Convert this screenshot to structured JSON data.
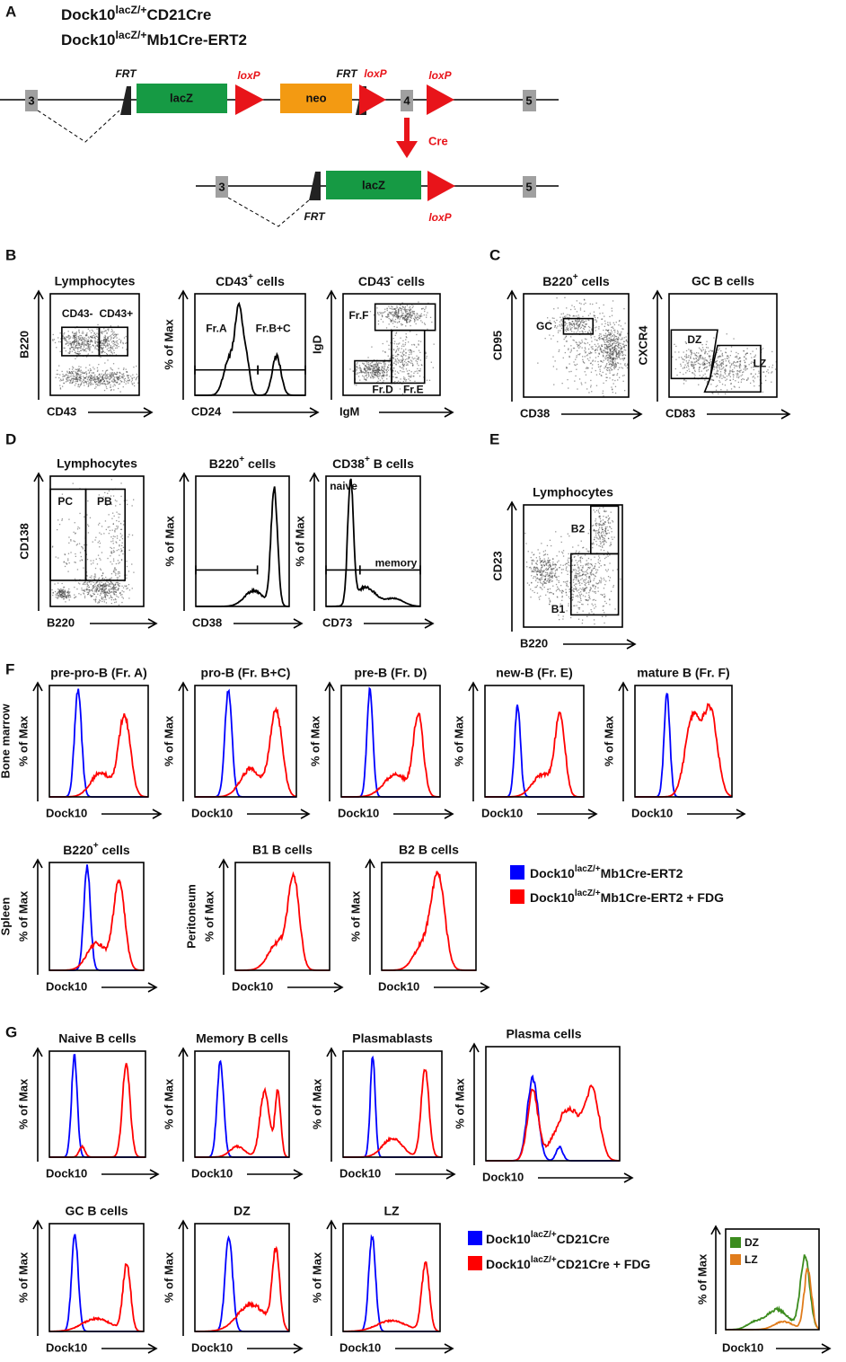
{
  "figure": {
    "A": {
      "label": "A",
      "genotypes": [
        {
          "base": "Dock10",
          "sup": "lacZ/+",
          "suffix": "CD21Cre"
        },
        {
          "base": "Dock10",
          "sup": "lacZ/+",
          "suffix": "Mb1Cre-ERT2"
        }
      ],
      "floxed_allele": {
        "exon_3": "3",
        "frt_1": "FRT",
        "lacz": "lacZ",
        "loxp_1": "loxP",
        "neo": "neo",
        "frt_2": "FRT",
        "loxp_2": "loxP",
        "exon_4": "4",
        "loxp_3": "loxP",
        "exon_5": "5"
      },
      "recombination": "Cre",
      "deleted_allele": {
        "exon_3": "3",
        "lacz": "lacZ",
        "frt": "FRT",
        "loxp": "loxP",
        "exon_5": "5"
      }
    },
    "B": {
      "label": "B",
      "plots": [
        {
          "title": "Lymphocytes",
          "x_label": "CD43",
          "y_label": "B220",
          "gates": [
            "CD43-",
            "CD43+"
          ]
        },
        {
          "title": {
            "base": "CD43",
            "sup": "+",
            "suffix": " cells"
          },
          "x_label": "CD24",
          "y_label": "% of Max",
          "gates": [
            "Fr.A",
            "Fr.B+C"
          ]
        },
        {
          "title": {
            "base": "CD43",
            "sup": "-",
            "suffix": " cells"
          },
          "x_label": "IgM",
          "y_label": "IgD",
          "gates": [
            "Fr.F",
            "Fr.D",
            "Fr.E"
          ]
        }
      ]
    },
    "C": {
      "label": "C",
      "plots": [
        {
          "title": {
            "base": "B220",
            "sup": "+",
            "suffix": " cells"
          },
          "x_label": "CD38",
          "y_label": "CD95",
          "gates": [
            "GC"
          ]
        },
        {
          "title": "GC B cells",
          "x_label": "CD83",
          "y_label": "CXCR4",
          "gates": [
            "DZ",
            "LZ"
          ]
        }
      ]
    },
    "D": {
      "label": "D",
      "plots": [
        {
          "title": "Lymphocytes",
          "x_label": "B220",
          "y_label": "CD138",
          "gates": [
            "PC",
            "PB"
          ]
        },
        {
          "title": {
            "base": "B220",
            "sup": "+",
            "suffix": " cells"
          },
          "x_label": "CD38",
          "y_label": "% of Max"
        },
        {
          "title": {
            "base": "CD38",
            "sup": "+",
            "suffix": " B cells"
          },
          "x_label": "CD73",
          "y_label": "% of Max",
          "gates": [
            "naive",
            "memory"
          ]
        }
      ]
    },
    "E": {
      "label": "E",
      "plots": [
        {
          "title": "Lymphocytes",
          "x_label": "B220",
          "y_label": "CD23",
          "gates": [
            "B2",
            "B1"
          ]
        }
      ]
    },
    "F": {
      "label": "F",
      "plots": [
        {
          "title": "pre-pro-B (Fr. A)",
          "tissue": "Bone marrow",
          "x_label": "Dock10",
          "y_label": "% of Max"
        },
        {
          "title": "pro-B (Fr. B+C)",
          "x_label": "Dock10",
          "y_label": "% of Max"
        },
        {
          "title": "pre-B (Fr. D)",
          "x_label": "Dock10",
          "y_label": "% of Max"
        },
        {
          "title": "new-B (Fr. E)",
          "x_label": "Dock10",
          "y_label": "% of Max"
        },
        {
          "title": "mature B (Fr. F)",
          "x_label": "Dock10",
          "y_label": "% of Max"
        },
        {
          "title": {
            "base": "B220",
            "sup": "+",
            "suffix": " cells"
          },
          "tissue": "Spleen",
          "x_label": "Dock10",
          "y_label": "% of Max"
        },
        {
          "title": "B1 B cells",
          "tissue": "Peritoneum",
          "x_label": "Dock10",
          "y_label": "% of Max"
        },
        {
          "title": "B2 B cells",
          "x_label": "Dock10",
          "y_label": "% of Max"
        }
      ],
      "legend": [
        {
          "color": "#0000ff",
          "label": {
            "base": "Dock10",
            "sup": "lacZ/+",
            "suffix": "Mb1Cre-ERT2"
          }
        },
        {
          "color": "#ff0000",
          "label": {
            "base": "Dock10",
            "sup": "lacZ/+",
            "suffix": "Mb1Cre-ERT2 + FDG"
          }
        }
      ]
    },
    "G": {
      "label": "G",
      "plots": [
        {
          "title": "Naive B cells",
          "x_label": "Dock10",
          "y_label": "% of Max"
        },
        {
          "title": "Memory B cells",
          "x_label": "Dock10",
          "y_label": "% of Max"
        },
        {
          "title": "Plasmablasts",
          "x_label": "Dock10",
          "y_label": "% of Max"
        },
        {
          "title": "Plasma cells",
          "x_label": "Dock10",
          "y_label": "% of Max"
        },
        {
          "title": "GC B cells",
          "x_label": "Dock10",
          "y_label": "% of Max"
        },
        {
          "title": "DZ",
          "x_label": "Dock10",
          "y_label": "% of Max"
        },
        {
          "title": "LZ",
          "x_label": "Dock10",
          "y_label": "% of Max"
        }
      ],
      "legend": [
        {
          "color": "#0000ff",
          "label": {
            "base": "Dock10",
            "sup": "lacZ/+",
            "suffix": "CD21Cre"
          }
        },
        {
          "color": "#ff0000",
          "label": {
            "base": "Dock10",
            "sup": "lacZ/+",
            "suffix": "CD21Cre + FDG"
          }
        }
      ],
      "inset": {
        "x_label": "Dock10",
        "y_label": "% of Max",
        "legend": [
          {
            "color": "#3c8c1e",
            "label": "DZ"
          },
          {
            "color": "#e07c1c",
            "label": "LZ"
          }
        ]
      }
    }
  }
}
